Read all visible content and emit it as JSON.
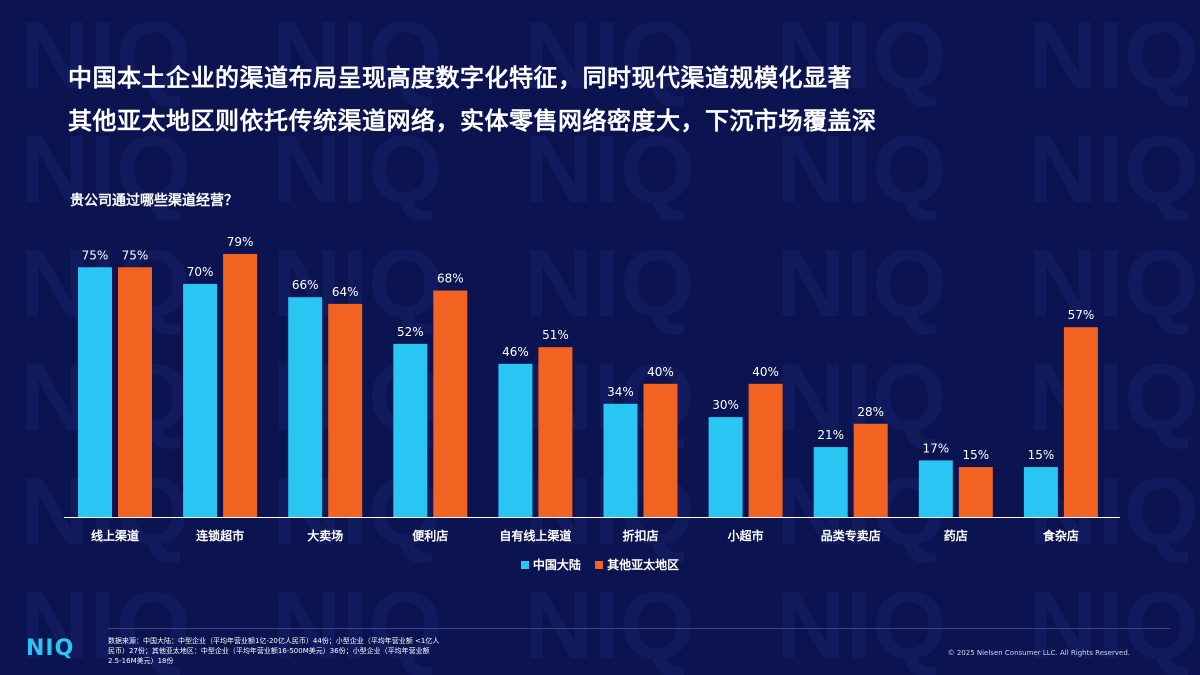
{
  "title_line1": "中国本土企业的渠道布局呈现高度数字化特征，同时现代渠道规模化显著",
  "title_line2": "其他亚太地区则依托传统渠道网络，实体零售网络密度大，下沉市场覆盖深",
  "question": "贵公司通过哪些渠道经营？",
  "watermark_text": "NIQ",
  "colors": {
    "background": "#0b1350",
    "series_china": "#29c6f3",
    "series_apac": "#f26322",
    "watermark": "#101a5c"
  },
  "chart_data": {
    "type": "bar",
    "categories": [
      "线上渠道",
      "连锁超市",
      "大卖场",
      "便利店",
      "自有线上渠道",
      "折扣店",
      "小超市",
      "品类专卖店",
      "药店",
      "食杂店"
    ],
    "series": [
      {
        "name": "中国大陆",
        "values": [
          75,
          70,
          66,
          52,
          46,
          34,
          30,
          21,
          17,
          15
        ],
        "labels": [
          "75%",
          "70%",
          "66%",
          "52%",
          "46%",
          "34%",
          "30%",
          "21%",
          "17%",
          "15%"
        ]
      },
      {
        "name": "其他亚太地区",
        "values": [
          75,
          79,
          64,
          68,
          51,
          40,
          40,
          28,
          15,
          57
        ],
        "labels": [
          "75%",
          "79%",
          "64%",
          "68%",
          "51%",
          "40%",
          "40%",
          "28%",
          "15%",
          "57%"
        ]
      }
    ],
    "unit": "%",
    "ylim": [
      0,
      100
    ],
    "grid": false,
    "legend_position": "bottom-center"
  },
  "footer": {
    "logo": "NIQ",
    "source_line1": "数据来源：中国大陆：中型企业（平均年营业额1亿-20亿人民币）44份；小型企业（平均年营业额 <1亿人",
    "source_line2": "民币）27份；其他亚太地区：中型企业（平均年营业额16-500M美元）36份；小型企业（平均年营业额",
    "source_line3": "2.5-16M美元）18份",
    "copyright": "© 2025 Nielsen Consumer LLC. All Rights Reserved."
  }
}
